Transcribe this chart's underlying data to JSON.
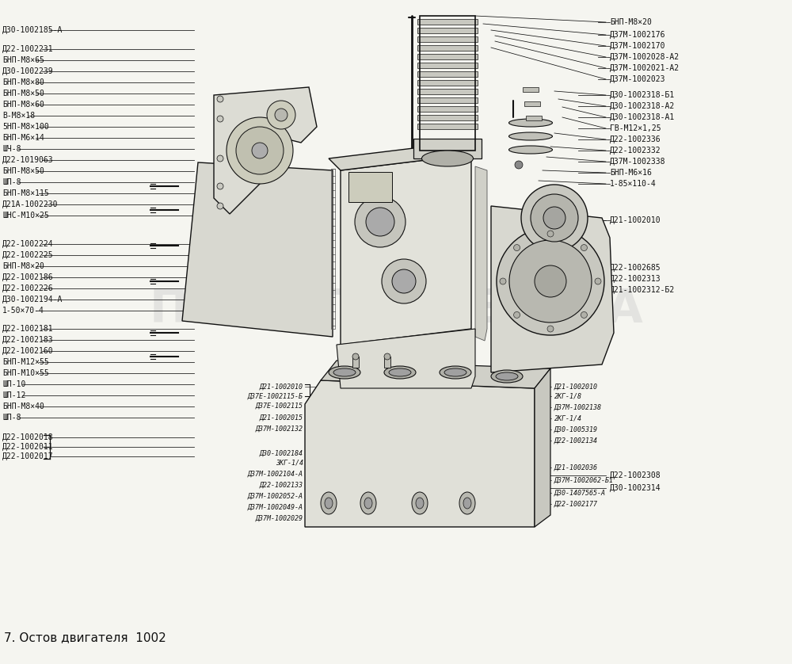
{
  "title": "7. Остов двигателя  1002",
  "background_color": "#f5f5f0",
  "watermark": "ПЛАНЕТА ЖЕЛЕЗА",
  "left_labels": [
    [
      "Д30-1002185-А",
      38
    ],
    [
      "Д22-1002231",
      62
    ],
    [
      "БНП-М8×65",
      76
    ],
    [
      "Д30-1002239",
      90
    ],
    [
      "БНП-М8×80",
      104
    ],
    [
      "БНП-М8×50",
      118
    ],
    [
      "БНП-М8×60",
      132
    ],
    [
      "В-М8×18",
      146
    ],
    [
      "5НП-М8×100",
      160
    ],
    [
      "БНП-М6×14",
      174
    ],
    [
      "ШЧ-8",
      188
    ],
    [
      "Д22-1019063",
      202
    ],
    [
      "БНП-М8×50",
      216
    ],
    [
      "ШП-8",
      230
    ],
    [
      "БНП-М8×115",
      244
    ],
    [
      "Д21А-1002230",
      258
    ],
    [
      "ШНС-М10×25",
      272
    ],
    [
      "Д22-1002224",
      308
    ],
    [
      "Д22-1002225",
      322
    ],
    [
      "БНП-М8×20",
      336
    ],
    [
      "Д22-1002186",
      350
    ],
    [
      "Д22-1002226",
      364
    ],
    [
      "Д30-1002194-А",
      378
    ],
    [
      "1-50×70-4",
      392
    ],
    [
      "Д22-1002181",
      415
    ],
    [
      "Д22-1002183",
      429
    ],
    [
      "Д22-1002160",
      443
    ],
    [
      "БНП-М12×55",
      457
    ],
    [
      "БНП-М10×55",
      471
    ],
    [
      "ШП-10",
      485
    ],
    [
      "ШП-12",
      499
    ],
    [
      "БНП-М8×40",
      513
    ],
    [
      "ШП-8",
      527
    ]
  ],
  "left_bracket_labels": [
    [
      "Д22-1002018",
      552
    ],
    [
      "Д22-1002011",
      564
    ],
    [
      "Д22-1002017",
      576
    ]
  ],
  "right_labels": [
    [
      "БНП-М8×20",
      28
    ],
    [
      "Д37М-1002176",
      44
    ],
    [
      "Д37М-1002170",
      58
    ],
    [
      "Д37М-1002028-А2",
      72
    ],
    [
      "Д37М-1002021-А2",
      86
    ],
    [
      "Д37М-1002023",
      100
    ],
    [
      "Д30-1002318-Б1",
      120
    ],
    [
      "Д30-1002318-А2",
      134
    ],
    [
      "Д30-1002318-А1",
      148
    ],
    [
      "ГВ-М12×1,25",
      162
    ],
    [
      "Д22-1002336",
      176
    ],
    [
      "Д22-1002332",
      190
    ],
    [
      "Д37М-1002338",
      204
    ],
    [
      "БНП-М6×16",
      218
    ],
    [
      "1-85×110-4",
      232
    ],
    [
      "Д21-1002010",
      278
    ],
    [
      "Д22-1002685",
      338
    ],
    [
      "Д22-1002313",
      352
    ],
    [
      "Д21-1002312-Б2",
      366
    ]
  ],
  "bottom_right_below": [
    [
      "Д22-1002308",
      600
    ],
    [
      "Д30-1002314",
      616
    ]
  ],
  "bottom_left_labels": [
    [
      "Д21-1002010",
      488
    ],
    [
      "Д37Е-1002115-Б",
      500
    ],
    [
      "Д37Е-1002115",
      512
    ],
    [
      "Д21-1002015",
      527
    ],
    [
      "Д37М-1002132",
      541
    ],
    [
      "Д30-1002184",
      572
    ],
    [
      "ЗКГ-1/4",
      584
    ],
    [
      "Д37М-1002104-А",
      598
    ],
    [
      "Д22-1002133",
      612
    ],
    [
      "Д37М-1002052-А",
      626
    ],
    [
      "Д37М-1002049-А",
      640
    ],
    [
      "Д37М-1002029",
      654
    ]
  ],
  "bottom_right_labels": [
    [
      "Д21-1002010",
      488
    ],
    [
      "2КГ-1/8",
      500
    ],
    [
      "Д37М-1002138",
      514
    ],
    [
      "2КГ-1/4",
      528
    ],
    [
      "Д30-1005319",
      542
    ],
    [
      "Д22-1002134",
      556
    ],
    [
      "Д21-1002036",
      590
    ],
    [
      "Д37М-1002062-Б1",
      606
    ],
    [
      "Д30-1407565-А",
      622
    ],
    [
      "Д22-1002177",
      636
    ]
  ],
  "text_color": "#111111",
  "line_color": "#111111"
}
